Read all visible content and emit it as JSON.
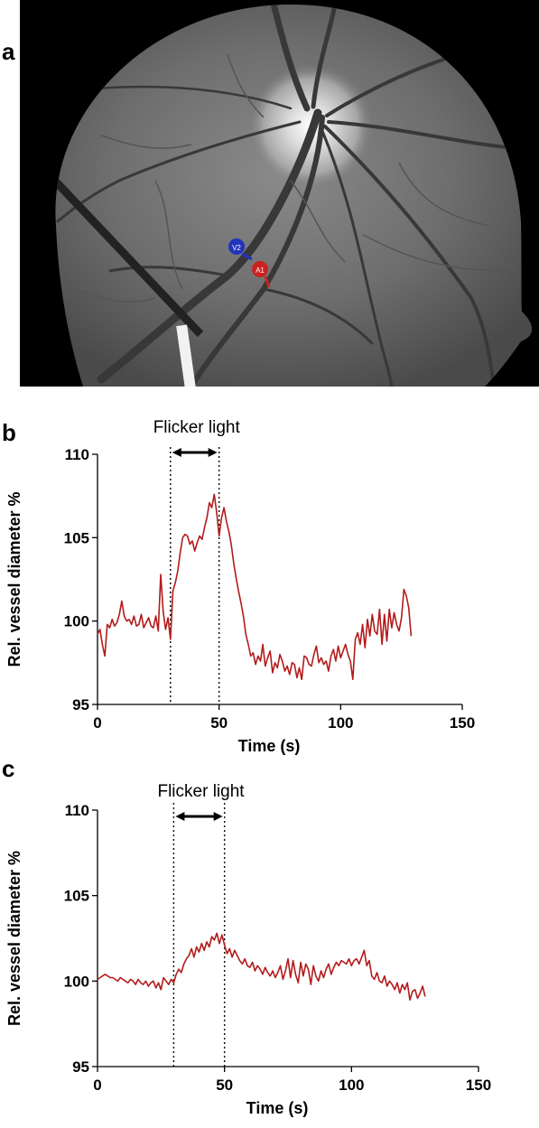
{
  "panels": {
    "a": {
      "letter": "a"
    },
    "b": {
      "letter": "b"
    },
    "c": {
      "letter": "c"
    }
  },
  "fundus_markers": [
    {
      "label": "V2",
      "color": "#2233bb"
    },
    {
      "label": "A1",
      "color": "#cc2222"
    }
  ],
  "colors": {
    "trace": "#b31b1b",
    "axis": "#000000"
  },
  "chart_data": [
    {
      "type": "line",
      "panel": "b",
      "annotation": "Flicker light",
      "flicker_interval": [
        30,
        50
      ],
      "xlabel": "Time (s)",
      "ylabel": "Rel. vessel diameter %",
      "xlim": [
        0,
        150
      ],
      "ylim": [
        95,
        110
      ],
      "xticks": [
        0,
        50,
        100,
        150
      ],
      "yticks": [
        95,
        100,
        105,
        110
      ],
      "grid": false,
      "series": [
        {
          "x": [
            0,
            1,
            2,
            3,
            4,
            5,
            6,
            7,
            8,
            9,
            10,
            11,
            12,
            13,
            14,
            15,
            16,
            17,
            18,
            19,
            20,
            21,
            22,
            23,
            24,
            25,
            26,
            27,
            28,
            29,
            30,
            31,
            32,
            33,
            34,
            35,
            36,
            37,
            38,
            39,
            40,
            41,
            42,
            43,
            44,
            45,
            46,
            47,
            48,
            49,
            50,
            51,
            52,
            53,
            54,
            55,
            56,
            57,
            58,
            59,
            60,
            61,
            62,
            63,
            64,
            65,
            66,
            67,
            68,
            69,
            70,
            71,
            72,
            73,
            74,
            75,
            76,
            77,
            78,
            79,
            80,
            81,
            82,
            83,
            84,
            85,
            86,
            87,
            88,
            89,
            90,
            91,
            92,
            93,
            94,
            95,
            96,
            97,
            98,
            99,
            100,
            101,
            102,
            103,
            104,
            105,
            106,
            107,
            108,
            109,
            110,
            111,
            112,
            113,
            114,
            115,
            116,
            117,
            118,
            119,
            120,
            121,
            122,
            123,
            124,
            125,
            126,
            127,
            128,
            129
          ],
          "y": [
            99.2,
            99.5,
            98.6,
            97.9,
            99.8,
            99.6,
            100.1,
            99.7,
            99.9,
            100.4,
            101.2,
            100.3,
            100.0,
            100.1,
            99.8,
            100.3,
            99.7,
            99.8,
            100.4,
            99.6,
            99.9,
            100.2,
            99.7,
            99.6,
            100.3,
            99.4,
            102.8,
            100.6,
            99.5,
            100.2,
            98.9,
            101.8,
            102.3,
            103.0,
            104.1,
            105.0,
            105.2,
            105.1,
            104.6,
            104.8,
            104.2,
            104.7,
            105.1,
            104.9,
            105.6,
            106.2,
            107.1,
            106.8,
            107.6,
            106.5,
            105.1,
            106.2,
            106.8,
            106.0,
            105.4,
            104.6,
            103.5,
            102.6,
            101.8,
            101.1,
            100.3,
            99.2,
            98.6,
            97.9,
            98.1,
            97.4,
            97.9,
            97.6,
            98.6,
            97.3,
            97.8,
            98.2,
            96.9,
            97.5,
            97.2,
            98.0,
            97.6,
            97.0,
            97.3,
            96.8,
            97.5,
            97.4,
            96.6,
            97.2,
            96.5,
            97.9,
            97.8,
            97.4,
            97.3,
            98.0,
            98.5,
            97.5,
            97.8,
            97.4,
            97.6,
            97.0,
            97.9,
            98.3,
            97.6,
            98.5,
            97.8,
            98.2,
            98.6,
            98.0,
            97.6,
            96.5,
            98.9,
            99.3,
            98.6,
            99.8,
            98.4,
            100.1,
            99.1,
            100.4,
            99.4,
            99.2,
            100.7,
            98.6,
            100.4,
            98.8,
            100.7,
            99.6,
            100.5,
            99.8,
            99.4,
            100.2,
            101.9,
            101.5,
            100.8,
            99.1
          ]
        }
      ]
    },
    {
      "type": "line",
      "panel": "c",
      "annotation": "Flicker light",
      "flicker_interval": [
        30,
        50
      ],
      "xlabel": "Time (s)",
      "ylabel": "Rel. vessel diameter %",
      "xlim": [
        0,
        150
      ],
      "ylim": [
        95,
        110
      ],
      "xticks": [
        0,
        50,
        100,
        150
      ],
      "yticks": [
        95,
        100,
        105,
        110
      ],
      "grid": false,
      "series": [
        {
          "x": [
            0,
            1,
            2,
            3,
            4,
            5,
            6,
            7,
            8,
            9,
            10,
            11,
            12,
            13,
            14,
            15,
            16,
            17,
            18,
            19,
            20,
            21,
            22,
            23,
            24,
            25,
            26,
            27,
            28,
            29,
            30,
            31,
            32,
            33,
            34,
            35,
            36,
            37,
            38,
            39,
            40,
            41,
            42,
            43,
            44,
            45,
            46,
            47,
            48,
            49,
            50,
            51,
            52,
            53,
            54,
            55,
            56,
            57,
            58,
            59,
            60,
            61,
            62,
            63,
            64,
            65,
            66,
            67,
            68,
            69,
            70,
            71,
            72,
            73,
            74,
            75,
            76,
            77,
            78,
            79,
            80,
            81,
            82,
            83,
            84,
            85,
            86,
            87,
            88,
            89,
            90,
            91,
            92,
            93,
            94,
            95,
            96,
            97,
            98,
            99,
            100,
            101,
            102,
            103,
            104,
            105,
            106,
            107,
            108,
            109,
            110,
            111,
            112,
            113,
            114,
            115,
            116,
            117,
            118,
            119,
            120,
            121,
            122,
            123,
            124,
            125,
            126,
            127,
            128,
            129
          ],
          "y": [
            100.1,
            100.2,
            100.3,
            100.4,
            100.3,
            100.2,
            100.2,
            100.1,
            100.0,
            100.2,
            100.1,
            100.0,
            99.9,
            100.1,
            100.0,
            99.8,
            100.1,
            99.9,
            99.8,
            100.0,
            99.7,
            99.9,
            100.0,
            99.6,
            99.9,
            99.5,
            100.2,
            100.0,
            99.8,
            100.1,
            99.9,
            100.4,
            100.7,
            100.5,
            101.0,
            101.3,
            101.5,
            101.9,
            101.4,
            102.0,
            101.7,
            102.2,
            101.8,
            102.3,
            102.0,
            102.6,
            102.4,
            102.8,
            102.2,
            102.7,
            102.1,
            101.6,
            101.9,
            101.4,
            101.8,
            101.5,
            101.2,
            101.0,
            101.3,
            100.9,
            100.8,
            101.1,
            100.6,
            100.9,
            100.7,
            100.4,
            100.8,
            100.5,
            100.3,
            100.6,
            100.2,
            100.5,
            100.9,
            100.1,
            100.6,
            101.3,
            100.2,
            101.2,
            100.4,
            99.9,
            101.1,
            100.3,
            101.0,
            100.7,
            99.8,
            100.9,
            100.3,
            100.0,
            100.6,
            100.2,
            100.7,
            101.0,
            100.4,
            100.8,
            101.1,
            100.9,
            101.2,
            101.1,
            101.0,
            101.3,
            100.9,
            101.2,
            101.3,
            101.0,
            101.4,
            101.8,
            100.9,
            101.2,
            100.3,
            100.1,
            100.5,
            100.0,
            99.9,
            100.3,
            99.7,
            100.0,
            99.8,
            99.5,
            99.9,
            99.3,
            99.8,
            99.5,
            99.9,
            98.9,
            99.4,
            99.5,
            99.0,
            99.3,
            99.7,
            99.1
          ]
        }
      ]
    }
  ]
}
